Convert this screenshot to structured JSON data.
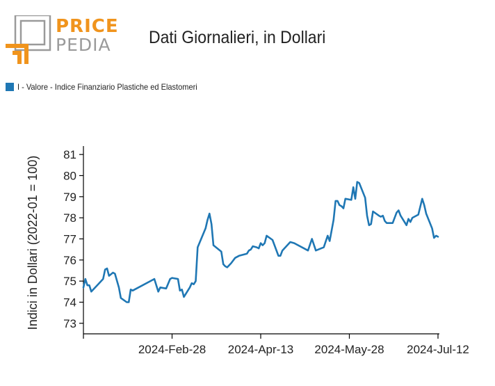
{
  "logo": {
    "top_text": "PRICE",
    "bottom_text": "PEDIA",
    "accent_color": "#f0941d",
    "gray_color": "#9a9a9a"
  },
  "title": "Dati Giornalieri, in Dollari",
  "legend": {
    "label": "I - Valore - Indice Finanziario Plastiche ed Elastomeri",
    "color": "#1f77b4"
  },
  "chart_data": {
    "type": "line",
    "title": "Dati Giornalieri, in Dollari",
    "xlabel": "",
    "ylabel": "Indici in Dollari (2022-01 = 100)",
    "ylim": [
      72.5,
      81.4
    ],
    "xlim": [
      "2024-01-14",
      "2024-07-12"
    ],
    "yticks": [
      73,
      74,
      75,
      76,
      77,
      78,
      79,
      80,
      81
    ],
    "xticks": [
      "2024-01-14",
      "2024-02-28",
      "2024-04-13",
      "2024-05-28",
      "2024-07-12"
    ],
    "xtick_labels": [
      "",
      "2024-Feb-28",
      "2024-Apr-13",
      "2024-May-28",
      "2024-Jul-12"
    ],
    "grid": false,
    "legend_position": "top-left",
    "series": [
      {
        "name": "I - Valore - Indice Finanziario Plastiche ed Elastomeri",
        "color": "#1f77b4",
        "points": [
          [
            "2024-01-14",
            74.7
          ],
          [
            "2024-01-15",
            75.1
          ],
          [
            "2024-01-16",
            74.8
          ],
          [
            "2024-01-17",
            74.8
          ],
          [
            "2024-01-18",
            74.5
          ],
          [
            "2024-01-21",
            74.8
          ],
          [
            "2024-01-24",
            75.1
          ],
          [
            "2024-01-25",
            75.55
          ],
          [
            "2024-01-26",
            75.6
          ],
          [
            "2024-01-27",
            75.25
          ],
          [
            "2024-01-29",
            75.4
          ],
          [
            "2024-01-30",
            75.35
          ],
          [
            "2024-02-01",
            74.7
          ],
          [
            "2024-02-02",
            74.2
          ],
          [
            "2024-02-05",
            74.0
          ],
          [
            "2024-02-06",
            74.0
          ],
          [
            "2024-02-07",
            74.6
          ],
          [
            "2024-02-08",
            74.55
          ],
          [
            "2024-02-19",
            75.1
          ],
          [
            "2024-02-21",
            74.5
          ],
          [
            "2024-02-22",
            74.7
          ],
          [
            "2024-02-25",
            74.65
          ],
          [
            "2024-02-27",
            75.1
          ],
          [
            "2024-02-28",
            75.15
          ],
          [
            "2024-03-02",
            75.1
          ],
          [
            "2024-03-03",
            74.55
          ],
          [
            "2024-03-04",
            74.6
          ],
          [
            "2024-03-05",
            74.25
          ],
          [
            "2024-03-08",
            74.7
          ],
          [
            "2024-03-09",
            74.9
          ],
          [
            "2024-03-10",
            74.85
          ],
          [
            "2024-03-11",
            75.0
          ],
          [
            "2024-03-12",
            76.6
          ],
          [
            "2024-03-16",
            77.5
          ],
          [
            "2024-03-17",
            77.9
          ],
          [
            "2024-03-18",
            78.2
          ],
          [
            "2024-03-19",
            77.7
          ],
          [
            "2024-03-20",
            76.7
          ],
          [
            "2024-03-24",
            76.4
          ],
          [
            "2024-03-25",
            75.8
          ],
          [
            "2024-03-26",
            75.7
          ],
          [
            "2024-03-27",
            75.65
          ],
          [
            "2024-03-29",
            75.85
          ],
          [
            "2024-03-31",
            76.1
          ],
          [
            "2024-04-02",
            76.2
          ],
          [
            "2024-04-04",
            76.25
          ],
          [
            "2024-04-06",
            76.3
          ],
          [
            "2024-04-07",
            76.45
          ],
          [
            "2024-04-08",
            76.5
          ],
          [
            "2024-04-09",
            76.65
          ],
          [
            "2024-04-11",
            76.6
          ],
          [
            "2024-04-12",
            76.55
          ],
          [
            "2024-04-13",
            76.8
          ],
          [
            "2024-04-14",
            76.7
          ],
          [
            "2024-04-15",
            76.8
          ],
          [
            "2024-04-16",
            77.15
          ],
          [
            "2024-04-19",
            76.95
          ],
          [
            "2024-04-22",
            76.2
          ],
          [
            "2024-04-23",
            76.2
          ],
          [
            "2024-04-24",
            76.45
          ],
          [
            "2024-04-28",
            76.85
          ],
          [
            "2024-04-30",
            76.8
          ],
          [
            "2024-05-07",
            76.45
          ],
          [
            "2024-05-09",
            77.0
          ],
          [
            "2024-05-11",
            76.45
          ],
          [
            "2024-05-15",
            76.6
          ],
          [
            "2024-05-17",
            77.15
          ],
          [
            "2024-05-18",
            76.9
          ],
          [
            "2024-05-20",
            77.9
          ],
          [
            "2024-05-21",
            78.8
          ],
          [
            "2024-05-22",
            78.8
          ],
          [
            "2024-05-23",
            78.6
          ],
          [
            "2024-05-24",
            78.55
          ],
          [
            "2024-05-25",
            78.45
          ],
          [
            "2024-05-26",
            78.9
          ],
          [
            "2024-05-29",
            78.85
          ],
          [
            "2024-05-30",
            79.45
          ],
          [
            "2024-05-31",
            78.9
          ],
          [
            "2024-06-01",
            79.7
          ],
          [
            "2024-06-02",
            79.65
          ],
          [
            "2024-06-05",
            78.95
          ],
          [
            "2024-06-06",
            78.1
          ],
          [
            "2024-06-07",
            77.65
          ],
          [
            "2024-06-08",
            77.7
          ],
          [
            "2024-06-09",
            78.3
          ],
          [
            "2024-06-12",
            78.1
          ],
          [
            "2024-06-13",
            78.05
          ],
          [
            "2024-06-14",
            78.1
          ],
          [
            "2024-06-15",
            77.85
          ],
          [
            "2024-06-16",
            77.75
          ],
          [
            "2024-06-19",
            77.75
          ],
          [
            "2024-06-21",
            78.25
          ],
          [
            "2024-06-22",
            78.35
          ],
          [
            "2024-06-23",
            78.1
          ],
          [
            "2024-06-26",
            77.65
          ],
          [
            "2024-06-27",
            77.95
          ],
          [
            "2024-06-28",
            77.8
          ],
          [
            "2024-06-29",
            78.0
          ],
          [
            "2024-07-02",
            78.15
          ],
          [
            "2024-07-04",
            78.9
          ],
          [
            "2024-07-05",
            78.6
          ],
          [
            "2024-07-06",
            78.2
          ],
          [
            "2024-07-09",
            77.5
          ],
          [
            "2024-07-10",
            77.05
          ],
          [
            "2024-07-11",
            77.15
          ],
          [
            "2024-07-12",
            77.1
          ]
        ]
      }
    ]
  }
}
